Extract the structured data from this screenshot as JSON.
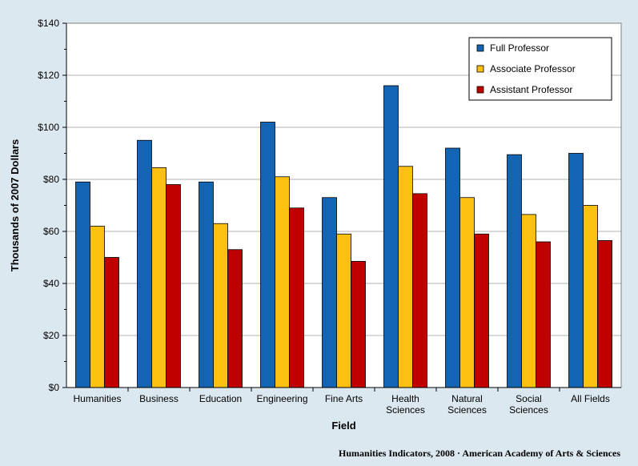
{
  "chart_data": {
    "type": "bar",
    "title": "",
    "xlabel": "Field",
    "ylabel": "Thousands of 2007 Dollars",
    "ylim": [
      0,
      140
    ],
    "y_ticks": [
      0,
      20,
      40,
      60,
      80,
      100,
      120,
      140
    ],
    "y_tick_labels": [
      "$0",
      "$20",
      "$40",
      "$60",
      "$80",
      "$100",
      "$120",
      "$140"
    ],
    "grid": true,
    "legend_position": "top-right",
    "categories": [
      [
        "Humanities"
      ],
      [
        "Business"
      ],
      [
        "Education"
      ],
      [
        "Engineering"
      ],
      [
        "Fine Arts"
      ],
      [
        "Health",
        "Sciences"
      ],
      [
        "Natural",
        "Sciences"
      ],
      [
        "Social",
        "Sciences"
      ],
      [
        "All Fields"
      ]
    ],
    "series": [
      {
        "name": "Full Professor",
        "color": "#1464b4",
        "values": [
          79,
          95,
          79,
          102,
          73,
          116,
          92,
          89.5,
          90
        ]
      },
      {
        "name": "Associate Professor",
        "color": "#fcc010",
        "values": [
          62,
          84.5,
          63,
          81,
          59,
          85,
          73,
          66.5,
          70
        ]
      },
      {
        "name": "Assistant Professor",
        "color": "#c00000",
        "values": [
          50,
          78,
          53,
          69,
          48.5,
          74.5,
          59,
          56,
          56.5
        ]
      }
    ],
    "source": "Humanities Indicators, 2008 · American Academy of Arts & Sciences"
  }
}
